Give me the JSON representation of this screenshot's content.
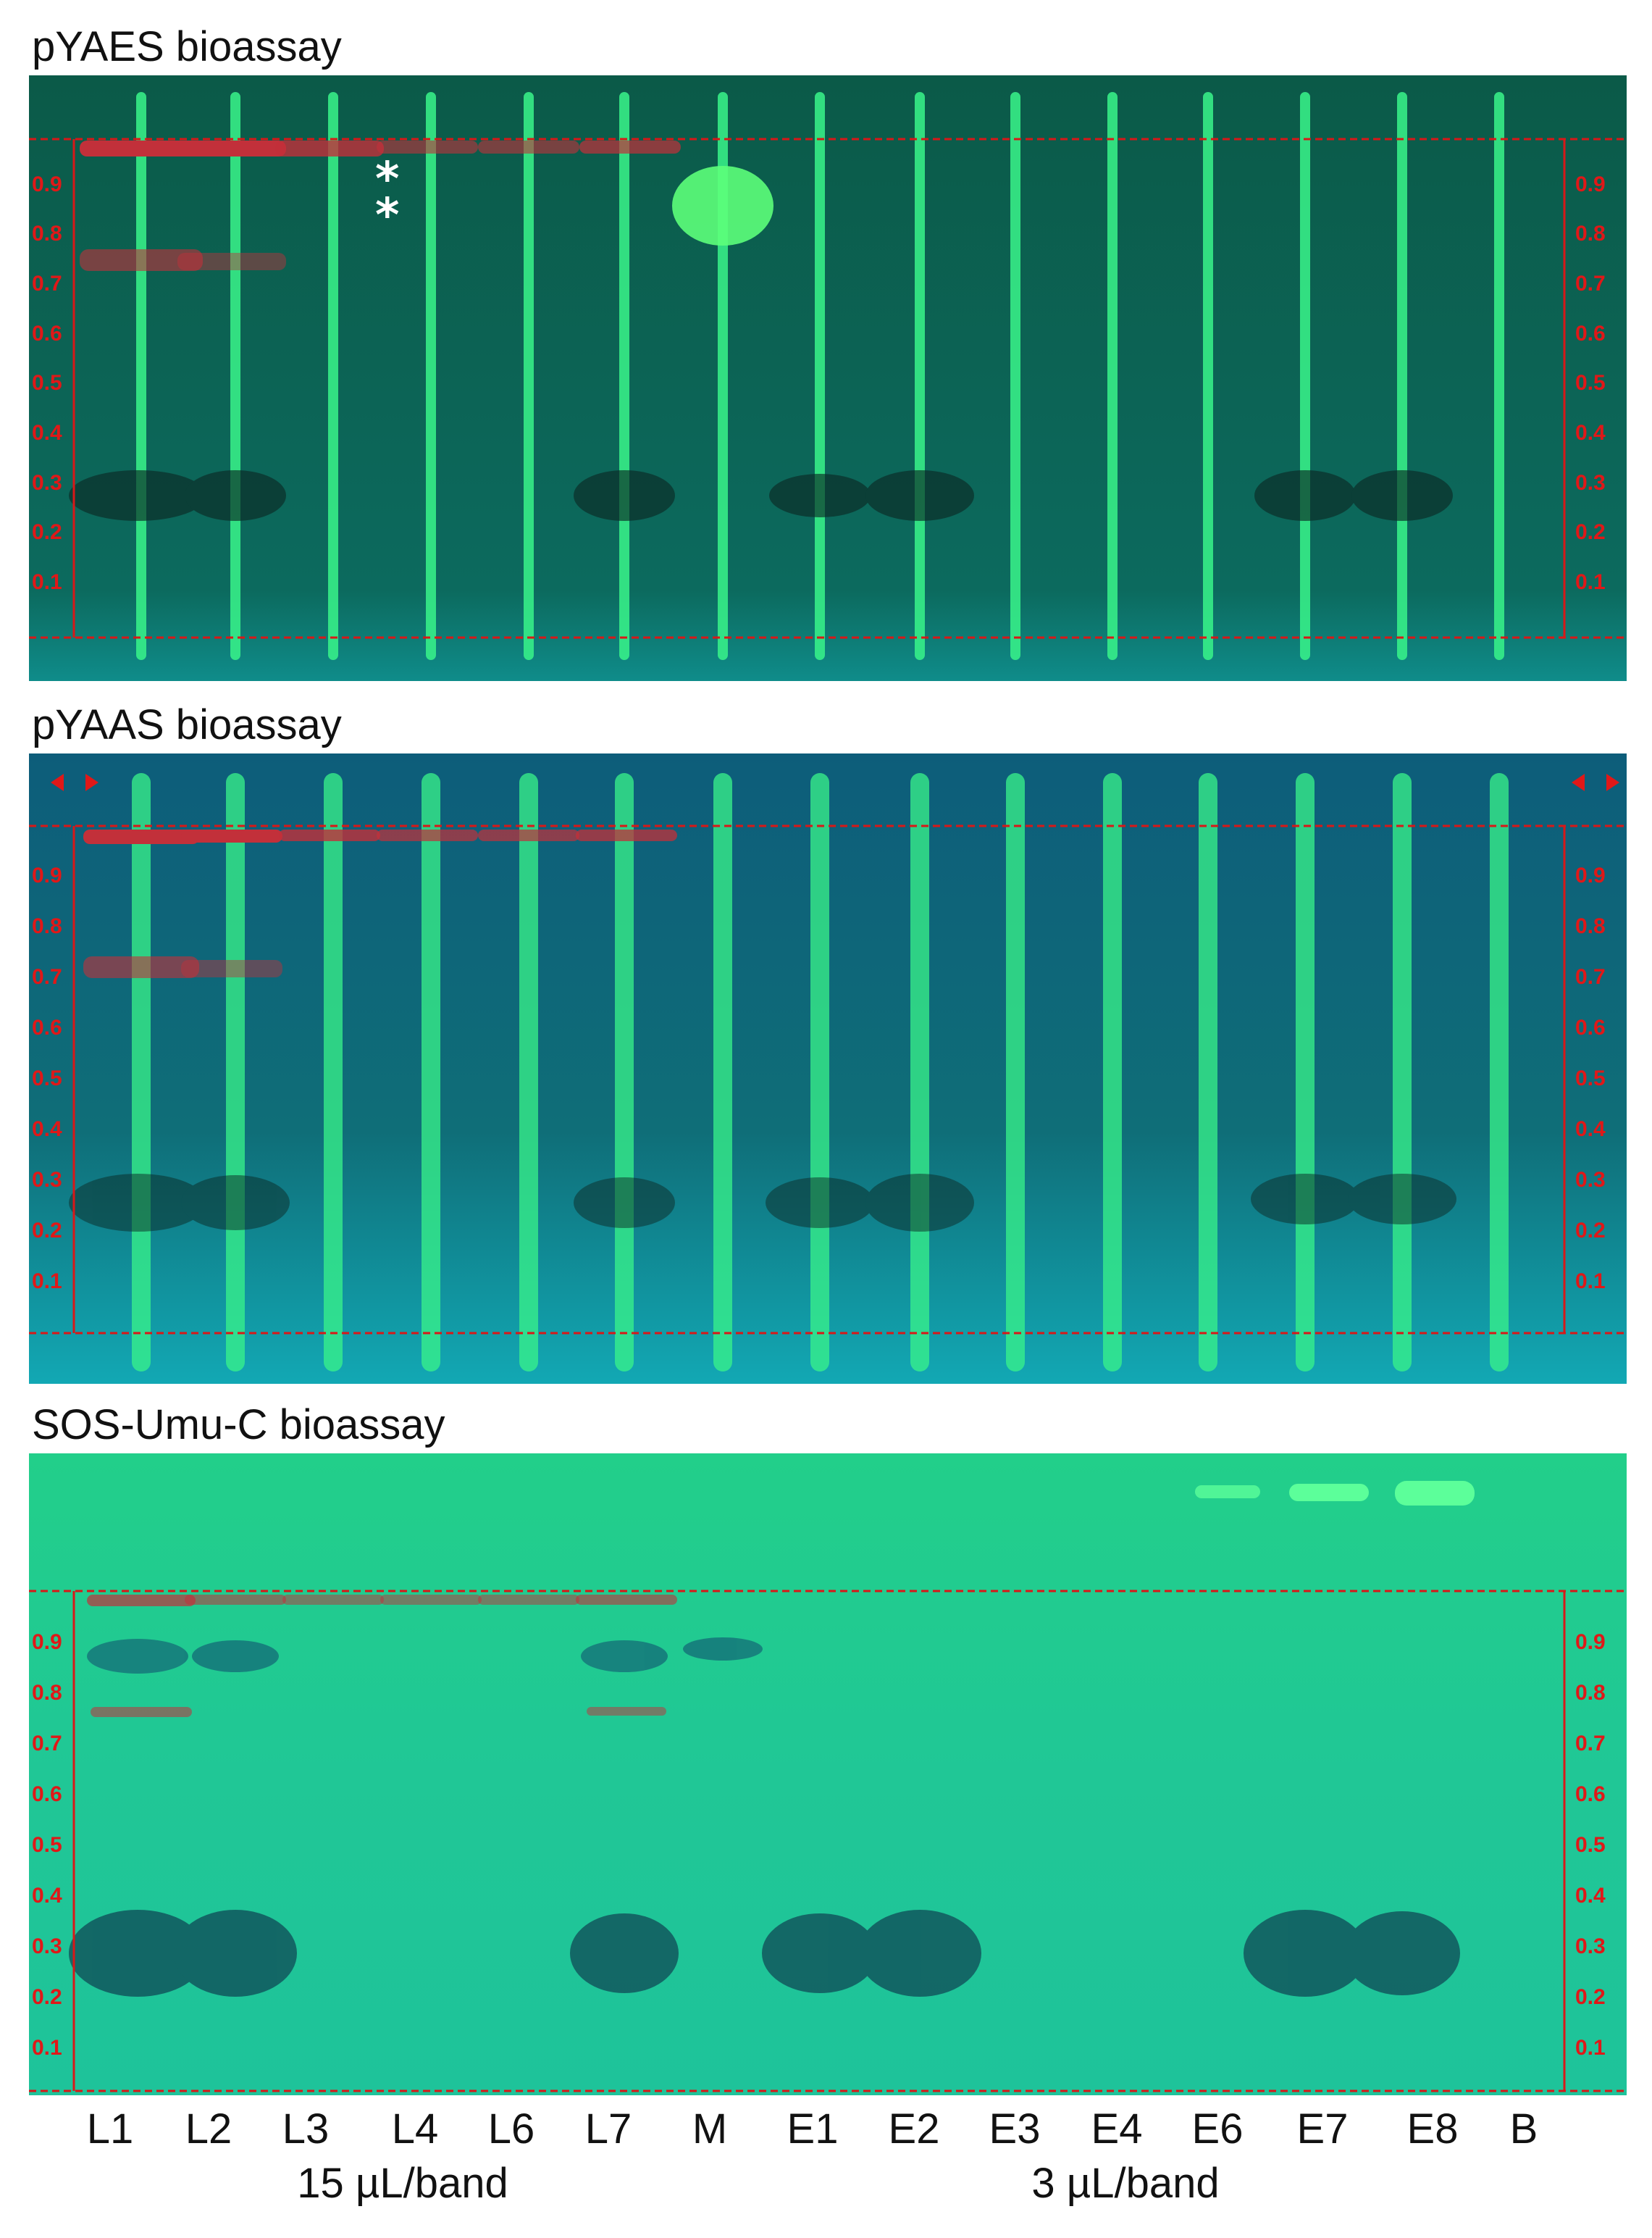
{
  "panels": [
    {
      "title": "pYAES bioassay",
      "background": "#0e5a4a",
      "annotation": "*\n*",
      "rf_ticks": [
        "0.9",
        "0.8",
        "0.7",
        "0.6",
        "0.5",
        "0.4",
        "0.3",
        "0.2",
        "0.1"
      ]
    },
    {
      "title": "pYAAS bioassay",
      "background": "#0f6a78",
      "rf_ticks": [
        "0.9",
        "0.8",
        "0.7",
        "0.6",
        "0.5",
        "0.4",
        "0.3",
        "0.2",
        "0.1"
      ]
    },
    {
      "title": "SOS-Umu-C bioassay",
      "background": "#1fcf8a",
      "rf_ticks": [
        "0.9",
        "0.8",
        "0.7",
        "0.6",
        "0.5",
        "0.4",
        "0.3",
        "0.2",
        "0.1"
      ]
    }
  ],
  "lanes": [
    "L1",
    "L2",
    "L3",
    "L4",
    "L6",
    "L7",
    "M",
    "E1",
    "E2",
    "E3",
    "E4",
    "E6",
    "E7",
    "E8",
    "B"
  ],
  "load_labels": {
    "left": "15 µL/band",
    "right": "3 µL/band"
  },
  "colors": {
    "rf_line": "#d81818",
    "fluor_band": "#39f58a",
    "dark_zone": "#0b2a25",
    "red_zone": "#c2303a"
  }
}
